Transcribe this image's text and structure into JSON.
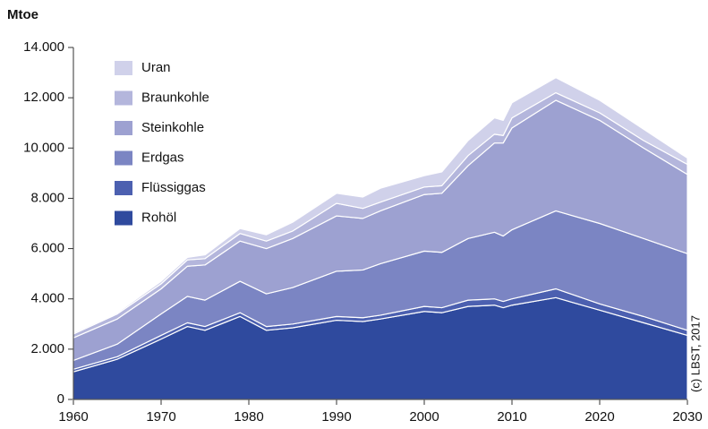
{
  "chart_data": {
    "type": "stacked_area",
    "ylabel": "Mtoe",
    "credit": "(c) LBST, 2017",
    "x": [
      1960,
      1965,
      1970,
      1973,
      1975,
      1979,
      1982,
      1985,
      1990,
      1993,
      1995,
      2000,
      2002,
      2005,
      2008,
      2009,
      2010,
      2015,
      2020,
      2025,
      2030
    ],
    "series": [
      {
        "name": "Rohöl",
        "color": "#2f4a9e",
        "values": [
          1100,
          1600,
          2400,
          2900,
          2750,
          3300,
          2750,
          2850,
          3150,
          3100,
          3200,
          3500,
          3450,
          3700,
          3750,
          3650,
          3750,
          4050,
          3550,
          3050,
          2550
        ]
      },
      {
        "name": "Flüssiggas",
        "color": "#4c60b0",
        "values": [
          100,
          100,
          150,
          150,
          150,
          150,
          150,
          150,
          150,
          150,
          150,
          200,
          200,
          250,
          250,
          250,
          250,
          350,
          250,
          250,
          200
        ]
      },
      {
        "name": "Erdgas",
        "color": "#7b85c3",
        "values": [
          350,
          500,
          850,
          1050,
          1050,
          1250,
          1300,
          1450,
          1800,
          1900,
          2050,
          2200,
          2200,
          2450,
          2650,
          2600,
          2750,
          3100,
          3200,
          3100,
          3050
        ]
      },
      {
        "name": "Steinkohle",
        "color": "#9da1d1",
        "values": [
          900,
          1000,
          1000,
          1200,
          1400,
          1600,
          1800,
          1950,
          2200,
          2050,
          2100,
          2250,
          2350,
          2900,
          3550,
          3700,
          4050,
          4400,
          4100,
          3600,
          3150
        ]
      },
      {
        "name": "Braunkohle",
        "color": "#b4b6dc",
        "values": [
          150,
          200,
          200,
          250,
          250,
          300,
          300,
          300,
          500,
          400,
          350,
          300,
          300,
          400,
          350,
          300,
          400,
          300,
          300,
          300,
          400
        ]
      },
      {
        "name": "Uran",
        "color": "#d0d1ea",
        "values": [
          50,
          50,
          100,
          100,
          150,
          200,
          250,
          350,
          400,
          450,
          550,
          450,
          550,
          600,
          650,
          600,
          600,
          600,
          500,
          450,
          250
        ]
      }
    ],
    "xlim": [
      1960,
      2030
    ],
    "xticks": [
      1960,
      1970,
      1980,
      1990,
      2000,
      2010,
      2020,
      2030
    ],
    "ylim": [
      0,
      14000
    ],
    "yticks": [
      0,
      {
        "value": 2000,
        "label": "2.000"
      },
      {
        "value": 4000,
        "label": "4.000"
      },
      {
        "value": 6000,
        "label": "6.000"
      },
      {
        "value": 8000,
        "label": "8.000"
      },
      {
        "value": 10000,
        "label": "10.000"
      },
      {
        "value": 12000,
        "label": "12.000"
      },
      {
        "value": 14000,
        "label": "14.000"
      }
    ]
  }
}
